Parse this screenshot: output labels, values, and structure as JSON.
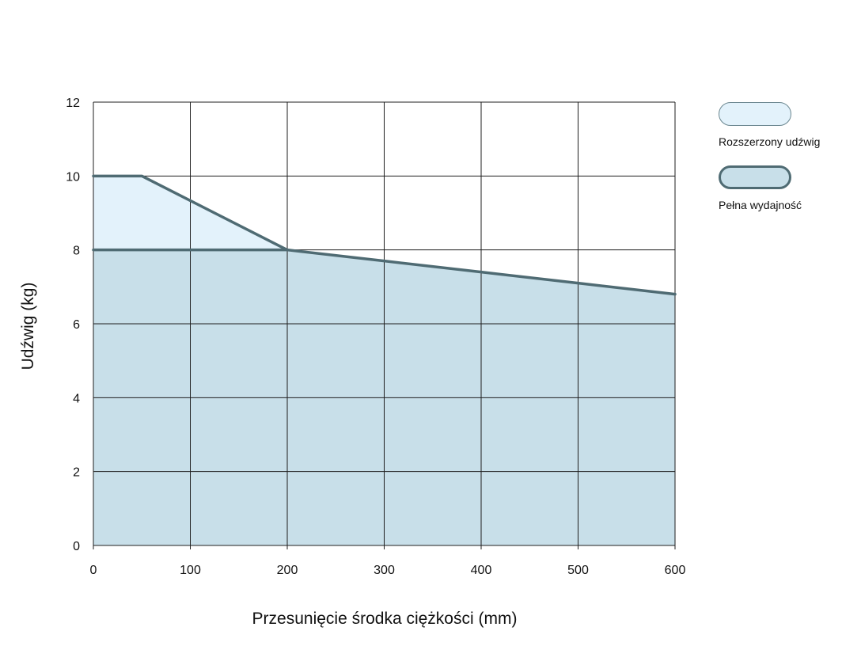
{
  "chart_data": {
    "type": "area",
    "xlabel": "Przesunięcie środka ciężkości (mm)",
    "ylabel": "Udźwig (kg)",
    "xlim": [
      0,
      600
    ],
    "ylim": [
      0,
      12
    ],
    "x_ticks": [
      0,
      100,
      200,
      300,
      400,
      500,
      600
    ],
    "y_ticks": [
      0,
      2,
      4,
      6,
      8,
      10,
      12
    ],
    "grid": true,
    "legend_position": "right",
    "series": [
      {
        "name": "Rozszerzony udźwig",
        "color": "#e3f2fb",
        "points": [
          [
            0,
            10
          ],
          [
            50,
            10
          ],
          [
            200,
            8
          ]
        ]
      },
      {
        "name": "Pełna wydajność",
        "color": "#c8dfe9",
        "points": [
          [
            0,
            8
          ],
          [
            200,
            8
          ],
          [
            300,
            7.7
          ],
          [
            400,
            7.4
          ],
          [
            500,
            7.1
          ],
          [
            600,
            6.8
          ]
        ]
      }
    ],
    "line_color": "#4f6b73"
  },
  "legend": {
    "items": [
      {
        "label": "Rozszerzony udźwig",
        "fill": "#e3f2fb",
        "border": "#6b8790",
        "border_width": 1
      },
      {
        "label": "Pełna wydajność",
        "fill": "#c8dfe9",
        "border": "#4f6b73",
        "border_width": 3
      }
    ]
  }
}
